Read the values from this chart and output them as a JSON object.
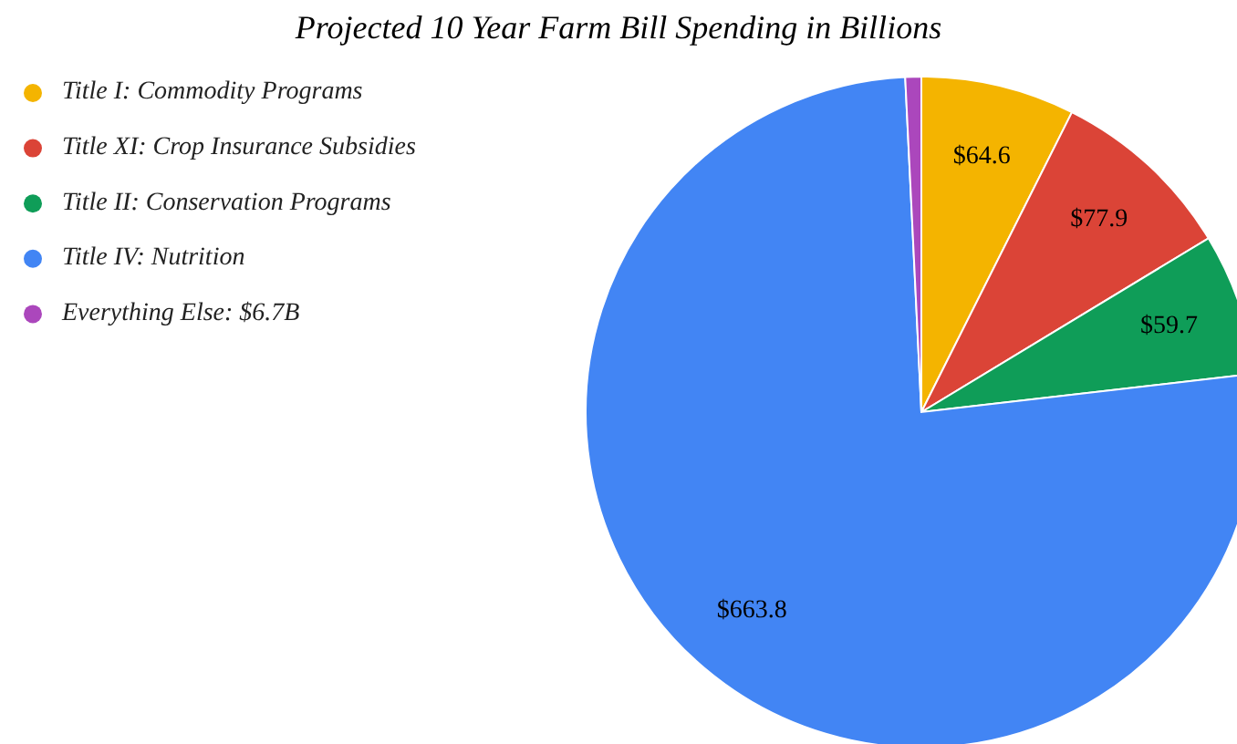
{
  "chart_data": {
    "type": "pie",
    "title": "Projected 10 Year Farm Bill Spending in Billions",
    "categories": [
      "Title I: Commodity Programs",
      "Title XI: Crop Insurance Subsidies",
      "Title II: Conservation Programs",
      "Title IV: Nutrition",
      "Everything Else: $6.7B"
    ],
    "values": [
      64.6,
      77.9,
      59.7,
      663.8,
      6.7
    ],
    "colors": [
      "#f4b400",
      "#db4437",
      "#0f9d58",
      "#4285f4",
      "#ab47bc"
    ],
    "value_labels": [
      "$64.6",
      "$77.9",
      "$59.7",
      "$663.8",
      null
    ],
    "legend": "top left"
  }
}
